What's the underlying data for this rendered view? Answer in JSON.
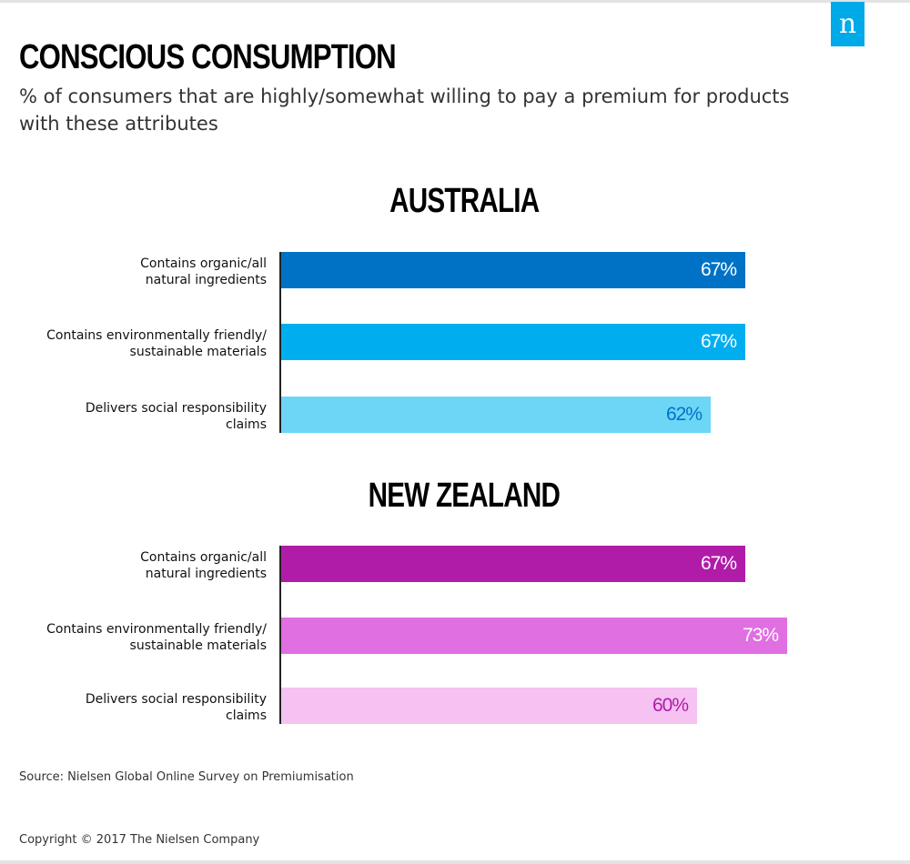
{
  "logo": {
    "glyph": "n",
    "color": "#00a9e7"
  },
  "title": "CONSCIOUS CONSUMPTION",
  "subtitle_line1": "% of consumers that are highly/somewhat willing to pay a premium for products",
  "subtitle_line2": "with these attributes",
  "source": "Source: Nielsen Global Online Survey on Premiumisation",
  "copyright": "Copyright © 2017 The Nielsen Company",
  "chart_data": [
    {
      "type": "bar",
      "orientation": "horizontal",
      "title": "AUSTRALIA",
      "categories": [
        [
          "Contains organic/all",
          "natural ingredients"
        ],
        [
          "Contains environmentally friendly/",
          "sustainable materials"
        ],
        [
          "Delivers social responsibility",
          "claims"
        ]
      ],
      "values": [
        67,
        67,
        62
      ],
      "value_labels": [
        "67%",
        "67%",
        "62%"
      ],
      "unit": "%",
      "xlim": [
        0,
        75
      ],
      "colors": [
        "#0072c6",
        "#00aeef",
        "#6dd6f7"
      ],
      "label_colors": [
        "#ffffff",
        "#ffffff",
        "#0072c6"
      ]
    },
    {
      "type": "bar",
      "orientation": "horizontal",
      "title": "NEW ZEALAND",
      "categories": [
        [
          "Contains organic/all",
          "natural ingredients"
        ],
        [
          "Contains environmentally friendly/",
          "sustainable materials"
        ],
        [
          "Delivers social responsibility",
          "claims"
        ]
      ],
      "values": [
        67,
        73,
        60
      ],
      "value_labels": [
        "67%",
        "73%",
        "60%"
      ],
      "unit": "%",
      "xlim": [
        0,
        75
      ],
      "colors": [
        "#b01ca8",
        "#e06fe2",
        "#f6c2f2"
      ],
      "label_colors": [
        "#ffffff",
        "#ffffff",
        "#b01ca8"
      ]
    }
  ]
}
